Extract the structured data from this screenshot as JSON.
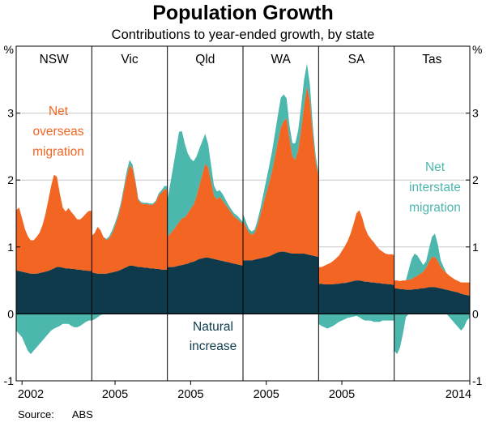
{
  "title": "Population Growth",
  "subtitle": "Contributions to year-ended growth, by state",
  "source_label": "Source:",
  "source_value": "ABS",
  "colors": {
    "orange": "#f26522",
    "teal": "#4cb7ad",
    "navy": "#0e3a4c",
    "grid": "#c9c9c9",
    "axis": "#000000"
  },
  "chart_data": {
    "type": "area",
    "stacked": true,
    "unit": "%",
    "ylim": [
      -1,
      4
    ],
    "yticks": [
      -1,
      0,
      1,
      2,
      3
    ],
    "ytick_labels": [
      "-1",
      "0",
      "1",
      "2",
      "3"
    ],
    "x_start": 2001,
    "x_end": 2014,
    "x_step": 0.5,
    "series_names": [
      "Natural increase",
      "Net overseas migration",
      "Net interstate migration"
    ],
    "annotations": [
      {
        "lines": [
          "Net",
          "overseas",
          "migration"
        ],
        "color_key": "orange"
      },
      {
        "lines": [
          "Net",
          "interstate",
          "migration"
        ],
        "color_key": "teal"
      },
      {
        "lines": [
          "Natural",
          "increase"
        ],
        "color_key": "navy"
      }
    ],
    "panels": [
      {
        "state": "NSW",
        "year_label": "2002",
        "series": {
          "natural": [
            0.65,
            0.64,
            0.63,
            0.62,
            0.61,
            0.6,
            0.6,
            0.6,
            0.61,
            0.62,
            0.63,
            0.64,
            0.66,
            0.68,
            0.7,
            0.7,
            0.69,
            0.68,
            0.68,
            0.67,
            0.67,
            0.66,
            0.66,
            0.65,
            0.65,
            0.64,
            0.64
          ],
          "overseas": [
            0.9,
            0.95,
            0.8,
            0.65,
            0.55,
            0.5,
            0.5,
            0.55,
            0.6,
            0.7,
            0.85,
            1.05,
            1.25,
            1.4,
            1.35,
            1.1,
            0.9,
            0.85,
            0.9,
            0.85,
            0.8,
            0.75,
            0.75,
            0.8,
            0.85,
            0.9,
            0.9
          ],
          "interstate": [
            -0.25,
            -0.3,
            -0.35,
            -0.45,
            -0.55,
            -0.6,
            -0.55,
            -0.5,
            -0.45,
            -0.4,
            -0.35,
            -0.3,
            -0.25,
            -0.22,
            -0.2,
            -0.18,
            -0.15,
            -0.15,
            -0.15,
            -0.18,
            -0.2,
            -0.2,
            -0.18,
            -0.15,
            -0.12,
            -0.1,
            -0.1
          ]
        }
      },
      {
        "state": "Vic",
        "year_label": "2005",
        "series": {
          "natural": [
            0.62,
            0.61,
            0.6,
            0.6,
            0.6,
            0.6,
            0.61,
            0.62,
            0.63,
            0.64,
            0.66,
            0.68,
            0.7,
            0.72,
            0.72,
            0.71,
            0.7,
            0.7,
            0.69,
            0.69,
            0.68,
            0.68,
            0.67,
            0.67,
            0.66,
            0.66,
            0.66
          ],
          "overseas": [
            0.55,
            0.6,
            0.7,
            0.65,
            0.55,
            0.5,
            0.52,
            0.58,
            0.68,
            0.8,
            0.95,
            1.15,
            1.35,
            1.5,
            1.45,
            1.25,
            1.0,
            0.95,
            0.95,
            0.95,
            0.95,
            0.95,
            1.0,
            1.1,
            1.15,
            1.2,
            1.2
          ],
          "interstate": [
            -0.1,
            -0.08,
            -0.05,
            -0.02,
            0.0,
            0.02,
            0.03,
            0.05,
            0.05,
            0.05,
            0.05,
            0.06,
            0.08,
            0.08,
            0.06,
            0.04,
            0.02,
            0.02,
            0.02,
            0.02,
            0.02,
            0.02,
            0.02,
            0.03,
            0.04,
            0.05,
            0.05
          ]
        }
      },
      {
        "state": "Qld",
        "year_label": "2005",
        "series": {
          "natural": [
            0.7,
            0.7,
            0.7,
            0.71,
            0.72,
            0.73,
            0.74,
            0.75,
            0.77,
            0.78,
            0.8,
            0.82,
            0.83,
            0.84,
            0.84,
            0.83,
            0.82,
            0.81,
            0.8,
            0.79,
            0.78,
            0.77,
            0.76,
            0.75,
            0.74,
            0.73,
            0.72
          ],
          "overseas": [
            0.45,
            0.5,
            0.55,
            0.6,
            0.65,
            0.7,
            0.7,
            0.75,
            0.8,
            0.85,
            0.95,
            1.1,
            1.25,
            1.4,
            1.35,
            1.15,
            0.95,
            0.9,
            0.95,
            0.9,
            0.85,
            0.8,
            0.75,
            0.7,
            0.68,
            0.65,
            0.62
          ],
          "interstate": [
            0.55,
            0.75,
            0.95,
            1.15,
            1.35,
            1.3,
            1.1,
            0.9,
            0.75,
            0.65,
            0.6,
            0.55,
            0.5,
            0.45,
            0.35,
            0.25,
            0.15,
            0.12,
            0.1,
            0.1,
            0.08,
            0.06,
            0.05,
            0.05,
            0.05,
            0.04,
            0.03
          ]
        }
      },
      {
        "state": "WA",
        "year_label": "2005",
        "series": {
          "natural": [
            0.8,
            0.8,
            0.8,
            0.8,
            0.81,
            0.82,
            0.83,
            0.84,
            0.85,
            0.86,
            0.88,
            0.9,
            0.92,
            0.93,
            0.93,
            0.92,
            0.91,
            0.9,
            0.9,
            0.9,
            0.9,
            0.9,
            0.89,
            0.88,
            0.87,
            0.86,
            0.85
          ],
          "overseas": [
            0.6,
            0.5,
            0.42,
            0.38,
            0.4,
            0.5,
            0.65,
            0.8,
            0.95,
            1.1,
            1.25,
            1.45,
            1.65,
            1.85,
            1.95,
            2.0,
            1.7,
            1.45,
            1.4,
            1.55,
            1.85,
            2.2,
            2.5,
            2.3,
            1.8,
            1.4,
            1.2
          ],
          "interstate": [
            0.1,
            0.08,
            0.05,
            0.05,
            0.05,
            0.08,
            0.1,
            0.15,
            0.2,
            0.25,
            0.3,
            0.35,
            0.4,
            0.45,
            0.4,
            0.3,
            0.2,
            0.2,
            0.25,
            0.3,
            0.35,
            0.4,
            0.35,
            0.25,
            0.15,
            0.1,
            0.05
          ]
        }
      },
      {
        "state": "SA",
        "year_label": "2005",
        "series": {
          "natural": [
            0.45,
            0.45,
            0.44,
            0.44,
            0.44,
            0.44,
            0.45,
            0.45,
            0.46,
            0.46,
            0.47,
            0.48,
            0.49,
            0.5,
            0.5,
            0.49,
            0.48,
            0.48,
            0.47,
            0.47,
            0.46,
            0.46,
            0.45,
            0.45,
            0.44,
            0.44,
            0.43
          ],
          "overseas": [
            0.25,
            0.25,
            0.28,
            0.3,
            0.32,
            0.35,
            0.38,
            0.42,
            0.48,
            0.55,
            0.62,
            0.72,
            0.85,
            1.0,
            1.05,
            0.95,
            0.8,
            0.7,
            0.65,
            0.6,
            0.55,
            0.5,
            0.48,
            0.45,
            0.45,
            0.45,
            0.45
          ],
          "interstate": [
            -0.15,
            -0.18,
            -0.2,
            -0.22,
            -0.2,
            -0.18,
            -0.15,
            -0.12,
            -0.1,
            -0.08,
            -0.06,
            -0.05,
            -0.04,
            -0.03,
            -0.05,
            -0.08,
            -0.1,
            -0.1,
            -0.1,
            -0.12,
            -0.12,
            -0.12,
            -0.1,
            -0.1,
            -0.1,
            -0.1,
            -0.1
          ]
        }
      },
      {
        "state": "Tas",
        "year_label": "2014",
        "series": {
          "natural": [
            0.38,
            0.38,
            0.37,
            0.37,
            0.36,
            0.36,
            0.36,
            0.37,
            0.37,
            0.38,
            0.38,
            0.39,
            0.4,
            0.4,
            0.4,
            0.39,
            0.38,
            0.37,
            0.36,
            0.35,
            0.34,
            0.33,
            0.32,
            0.3,
            0.29,
            0.28,
            0.27
          ],
          "overseas": [
            0.12,
            0.12,
            0.12,
            0.13,
            0.14,
            0.15,
            0.16,
            0.18,
            0.2,
            0.22,
            0.25,
            0.3,
            0.38,
            0.45,
            0.45,
            0.4,
            0.32,
            0.28,
            0.25,
            0.22,
            0.2,
            0.18,
            0.17,
            0.17,
            0.18,
            0.19,
            0.2
          ],
          "interstate": [
            -0.55,
            -0.6,
            -0.5,
            -0.3,
            -0.05,
            0.15,
            0.3,
            0.35,
            0.3,
            0.2,
            0.1,
            0.1,
            0.2,
            0.3,
            0.35,
            0.25,
            0.1,
            0.05,
            0.0,
            -0.05,
            -0.1,
            -0.15,
            -0.2,
            -0.25,
            -0.2,
            -0.1,
            -0.05
          ]
        }
      }
    ]
  }
}
